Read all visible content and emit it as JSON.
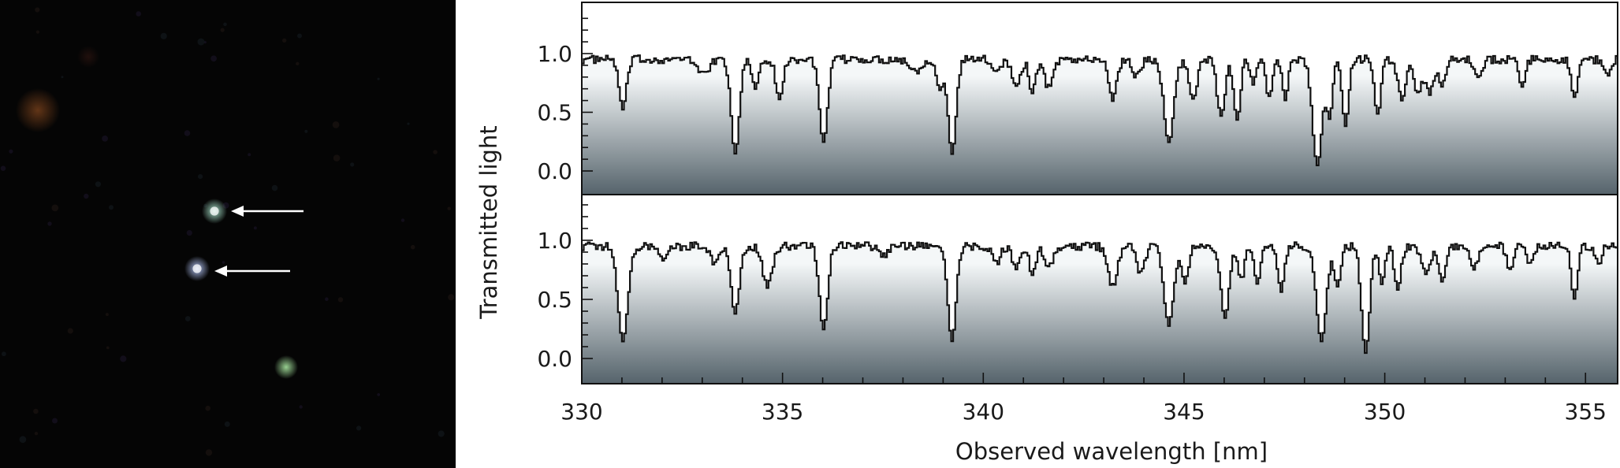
{
  "sky_image": {
    "background": "#050505",
    "sources": [
      {
        "name": "orange-blob",
        "color": "#8a4a1f",
        "glow": 0.7
      },
      {
        "name": "faint-red-blob",
        "color": "#4a2018",
        "glow": 0.4
      },
      {
        "name": "quasar-a",
        "color": "#9fd6c0",
        "glow": 1.0,
        "marked": true
      },
      {
        "name": "quasar-b",
        "color": "#a9b9e8",
        "glow": 1.0,
        "marked": true
      },
      {
        "name": "green-star",
        "color": "#a8e6a0",
        "glow": 0.9
      }
    ],
    "arrow_color": "#ffffff"
  },
  "chart_data": {
    "type": "line",
    "xlabel": "Observed wavelength [nm]",
    "ylabel": "Transmitted light",
    "xlim": [
      330,
      355.8
    ],
    "x_ticks": [
      330,
      335,
      340,
      345,
      350,
      355
    ],
    "y_ticks": [
      0.0,
      0.5,
      1.0
    ],
    "ylim": [
      -0.1,
      1.4
    ],
    "fill_gradient": [
      "#f4f7f8",
      "#55636b"
    ],
    "line_color": "#111111",
    "continuum": 0.95,
    "panels": [
      {
        "series": [
          {
            "absorption_lines": [
              [
                331.0,
                0.45,
                0.09
              ],
              [
                333.0,
                0.12,
                0.15
              ],
              [
                333.8,
                0.85,
                0.1
              ],
              [
                334.3,
                0.25,
                0.08
              ],
              [
                334.9,
                0.35,
                0.09
              ],
              [
                336.0,
                0.75,
                0.1
              ],
              [
                338.3,
                0.1,
                0.15
              ],
              [
                338.9,
                0.25,
                0.08
              ],
              [
                339.2,
                0.85,
                0.1
              ],
              [
                340.3,
                0.1,
                0.1
              ],
              [
                340.8,
                0.25,
                0.1
              ],
              [
                341.2,
                0.3,
                0.08
              ],
              [
                341.6,
                0.25,
                0.1
              ],
              [
                343.2,
                0.35,
                0.1
              ],
              [
                343.8,
                0.15,
                0.1
              ],
              [
                344.6,
                0.75,
                0.12
              ],
              [
                345.2,
                0.35,
                0.1
              ],
              [
                345.9,
                0.5,
                0.1
              ],
              [
                346.3,
                0.55,
                0.08
              ],
              [
                346.7,
                0.25,
                0.06
              ],
              [
                347.1,
                0.35,
                0.08
              ],
              [
                347.5,
                0.35,
                0.07
              ],
              [
                348.3,
                0.95,
                0.12
              ],
              [
                348.6,
                0.5,
                0.08
              ],
              [
                349.0,
                0.6,
                0.08
              ],
              [
                349.8,
                0.5,
                0.08
              ],
              [
                350.4,
                0.35,
                0.1
              ],
              [
                350.8,
                0.3,
                0.1
              ],
              [
                351.1,
                0.3,
                0.1
              ],
              [
                351.4,
                0.25,
                0.08
              ],
              [
                352.3,
                0.15,
                0.1
              ],
              [
                353.4,
                0.25,
                0.08
              ],
              [
                354.7,
                0.35,
                0.08
              ],
              [
                355.5,
                0.15,
                0.08
              ]
            ]
          }
        ]
      },
      {
        "series": [
          {
            "absorption_lines": [
              [
                331.0,
                0.85,
                0.12
              ],
              [
                332.0,
                0.1,
                0.1
              ],
              [
                333.3,
                0.15,
                0.1
              ],
              [
                333.8,
                0.6,
                0.1
              ],
              [
                334.6,
                0.35,
                0.12
              ],
              [
                336.0,
                0.75,
                0.1
              ],
              [
                337.5,
                0.08,
                0.1
              ],
              [
                339.2,
                0.85,
                0.1
              ],
              [
                340.3,
                0.15,
                0.1
              ],
              [
                340.8,
                0.2,
                0.1
              ],
              [
                341.2,
                0.25,
                0.08
              ],
              [
                341.6,
                0.2,
                0.1
              ],
              [
                343.2,
                0.35,
                0.12
              ],
              [
                343.9,
                0.25,
                0.1
              ],
              [
                344.6,
                0.7,
                0.12
              ],
              [
                345.0,
                0.35,
                0.08
              ],
              [
                346.0,
                0.65,
                0.1
              ],
              [
                346.4,
                0.3,
                0.08
              ],
              [
                346.8,
                0.35,
                0.07
              ],
              [
                347.4,
                0.4,
                0.08
              ],
              [
                348.4,
                0.85,
                0.12
              ],
              [
                348.8,
                0.35,
                0.08
              ],
              [
                349.5,
                0.95,
                0.1
              ],
              [
                349.9,
                0.35,
                0.07
              ],
              [
                350.3,
                0.4,
                0.08
              ],
              [
                351.0,
                0.25,
                0.1
              ],
              [
                351.4,
                0.3,
                0.1
              ],
              [
                352.2,
                0.2,
                0.1
              ],
              [
                353.1,
                0.2,
                0.08
              ],
              [
                353.6,
                0.15,
                0.08
              ],
              [
                354.7,
                0.45,
                0.08
              ],
              [
                355.3,
                0.15,
                0.08
              ]
            ]
          }
        ]
      }
    ]
  }
}
